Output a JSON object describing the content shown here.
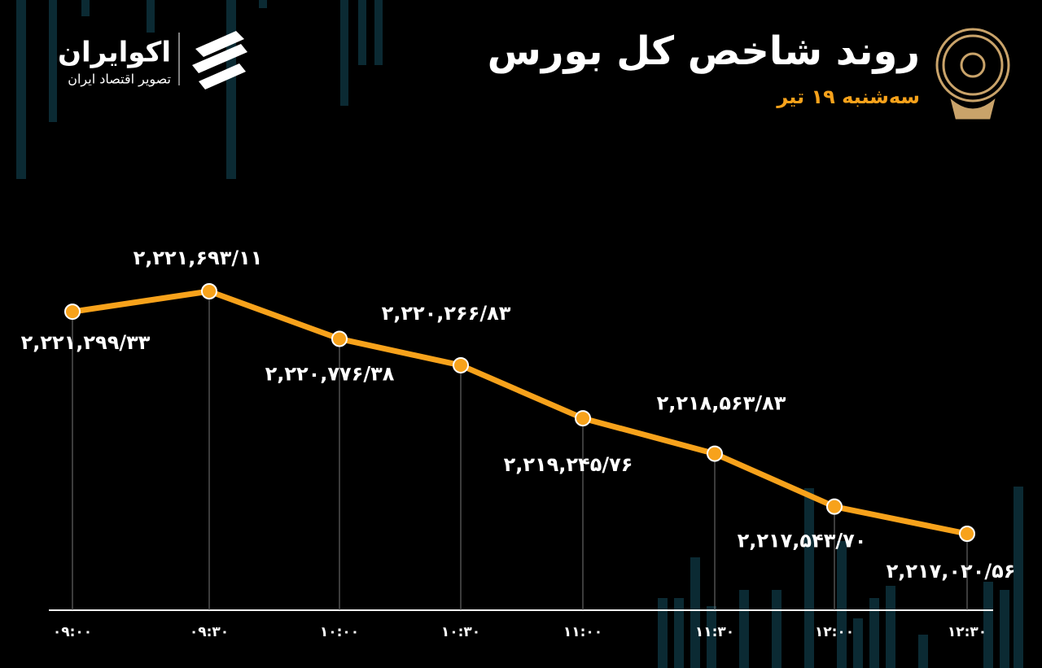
{
  "brand": {
    "name": "اکوایران",
    "tagline": "تصویر اقتصاد ایران"
  },
  "chart_data": {
    "type": "line",
    "title": "روند شاخص کل بورس",
    "subtitle": "سه‌شنبه ۱۹ تیر",
    "categories": [
      "۰۹:۰۰",
      "۰۹:۳۰",
      "۱۰:۰۰",
      "۱۰:۳۰",
      "۱۱:۰۰",
      "۱۱:۳۰",
      "۱۲:۰۰",
      "۱۲:۳۰"
    ],
    "series": [
      {
        "color": "#f7a21b",
        "values": [
          2221299.33,
          2221693.11,
          2220776.38,
          2220266.83,
          2219245.76,
          2218563.83,
          2217543.7,
          2217020.56
        ],
        "value_labels": [
          "۲,۲۲۱,۲۹۹/۳۳",
          "۲,۲۲۱,۶۹۳/۱۱",
          "۲,۲۲۰,۷۷۶/۳۸",
          "۲,۲۲۰,۲۶۶/۸۳",
          "۲,۲۱۹,۲۴۵/۷۶",
          "۲,۲۱۸,۵۶۳/۸۳",
          "۲,۲۱۷,۵۴۳/۷۰",
          "۲,۲۱۷,۰۲۰/۵۶"
        ]
      }
    ]
  }
}
